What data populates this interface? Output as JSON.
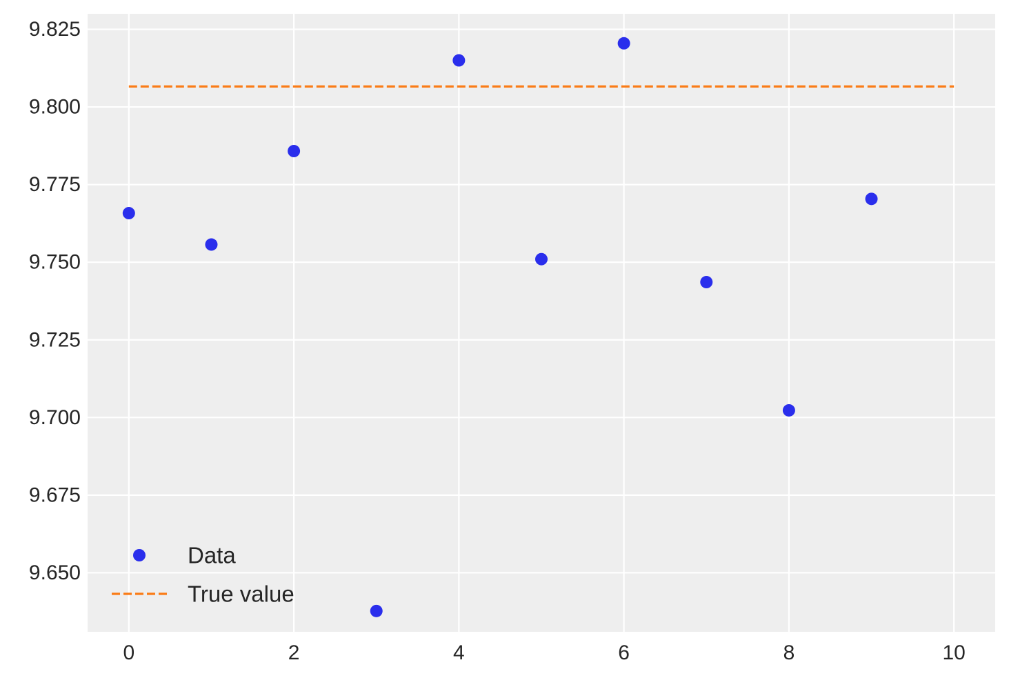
{
  "chart_data": {
    "type": "scatter",
    "title": "",
    "xlabel": "",
    "ylabel": "",
    "xlim": [
      -0.5,
      10.5
    ],
    "ylim": [
      9.631,
      9.83
    ],
    "xticks": [
      0,
      2,
      4,
      6,
      8,
      10
    ],
    "xtick_labels": [
      "0",
      "2",
      "4",
      "6",
      "8",
      "10"
    ],
    "yticks": [
      9.65,
      9.675,
      9.7,
      9.725,
      9.75,
      9.775,
      9.8,
      9.825
    ],
    "ytick_labels": [
      "9.650",
      "9.675",
      "9.700",
      "9.725",
      "9.750",
      "9.775",
      "9.800",
      "9.825"
    ],
    "grid": true,
    "legend_position": "lower-left",
    "series": [
      {
        "name": "Data",
        "kind": "scatter",
        "color": "#2a2eec",
        "x": [
          0,
          1,
          2,
          3,
          4,
          5,
          6,
          7,
          8,
          9
        ],
        "y": [
          9.7658,
          9.7557,
          9.7858,
          9.6377,
          9.815,
          9.751,
          9.8205,
          9.7436,
          9.7023,
          9.7704
        ]
      },
      {
        "name": "True value",
        "kind": "line",
        "style": "dashed",
        "color": "#fa7c17",
        "x": [
          0,
          10
        ],
        "y": [
          9.8066,
          9.8066
        ]
      }
    ]
  }
}
